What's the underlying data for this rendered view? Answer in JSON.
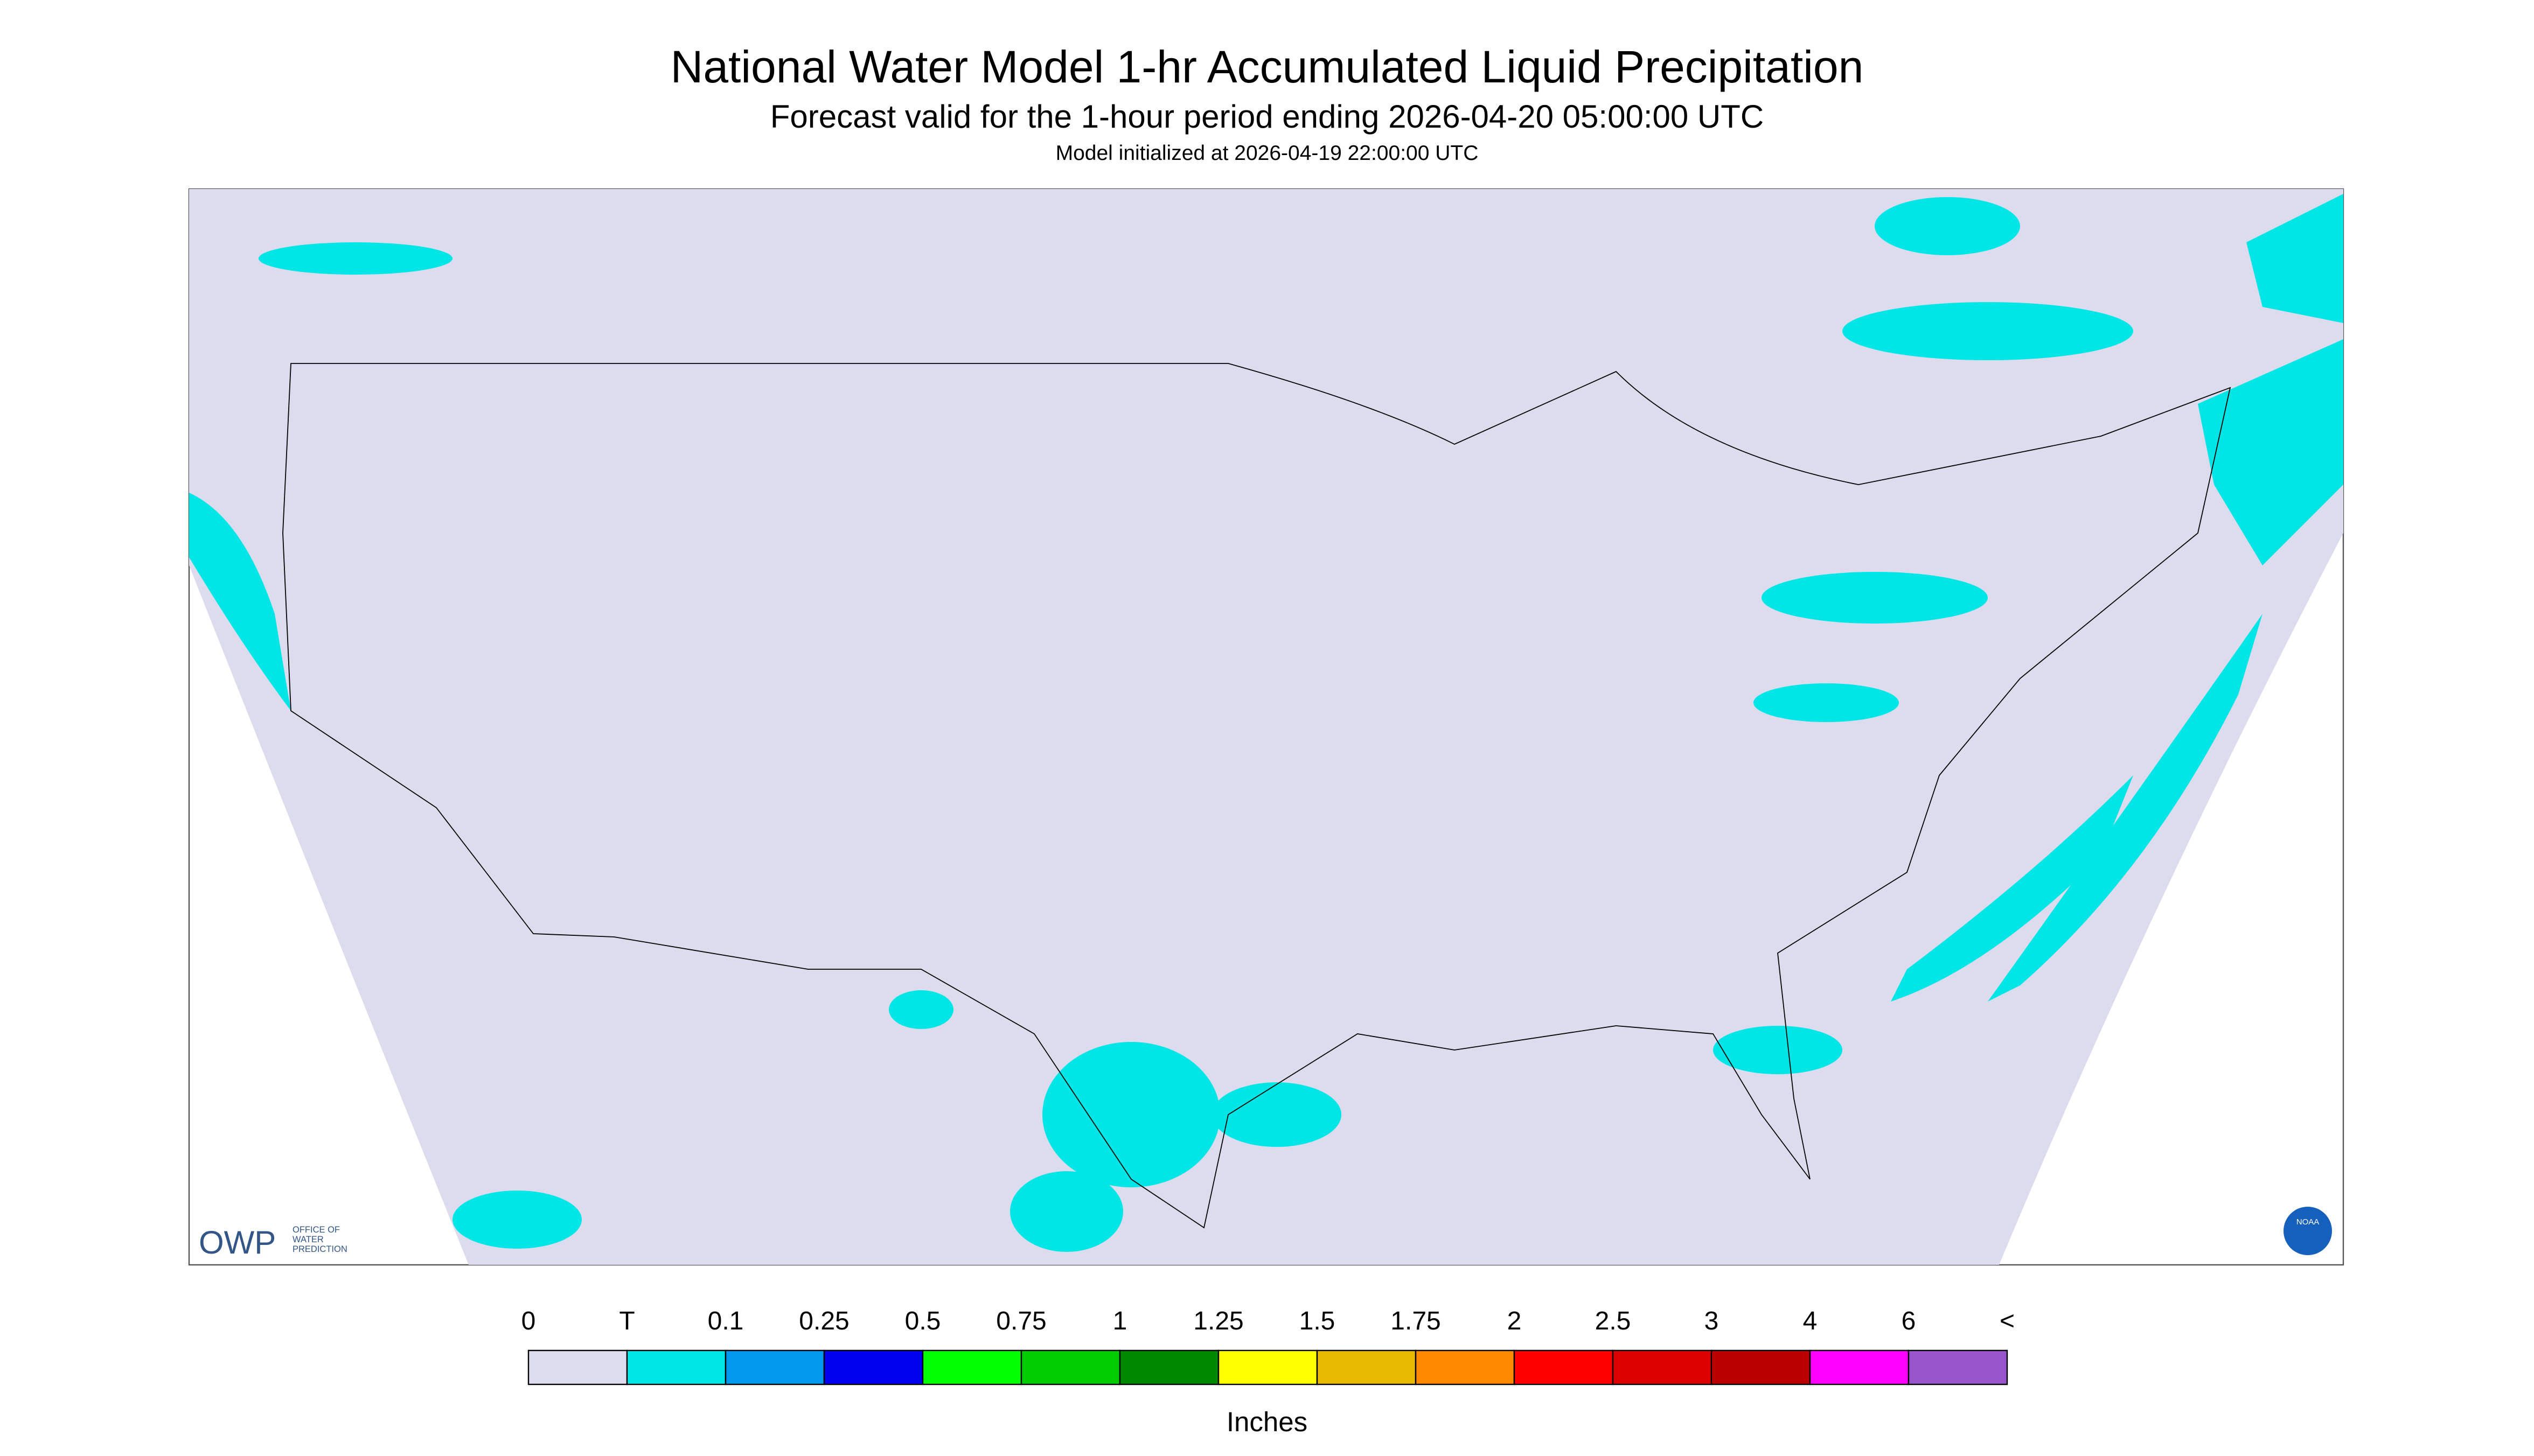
{
  "header": {
    "title": "National Water Model 1-hr Accumulated Liquid Precipitation",
    "subtitle": "Forecast valid for the 1-hour period ending 2026-04-20 05:00:00 UTC",
    "init": "Model initialized at 2026-04-19 22:00:00 UTC"
  },
  "legend": {
    "labels": [
      "0",
      "T",
      "0.1",
      "0.25",
      "0.5",
      "0.75",
      "1",
      "1.25",
      "1.5",
      "1.75",
      "2",
      "2.5",
      "3",
      "4",
      "6",
      "<"
    ],
    "colors": [
      "#dcdcee",
      "#00e6e6",
      "#0099ee",
      "#0000ee",
      "#00ff00",
      "#00cc00",
      "#008800",
      "#ffff00",
      "#e6bb00",
      "#ff8800",
      "#ff0000",
      "#dd0000",
      "#bb0000",
      "#ff00ff",
      "#9955cc"
    ],
    "unit": "Inches"
  },
  "logos": {
    "owp": "OWP",
    "owp_text": [
      "OFFICE OF",
      "WATER",
      "PREDICTION"
    ],
    "noaa": "NOAA"
  }
}
